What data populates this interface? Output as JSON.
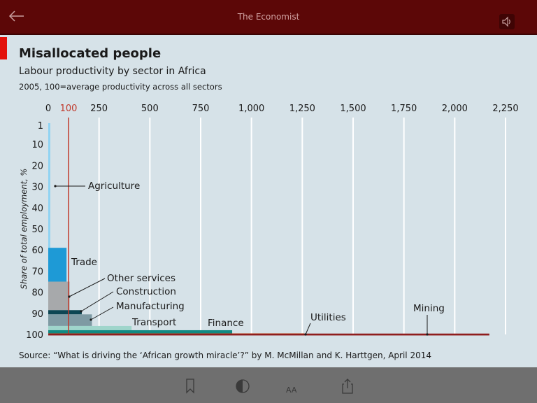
{
  "app": {
    "title": "The Economist"
  },
  "article": {
    "title": "Misallocated people",
    "subtitle": "Labour productivity by sector in Africa",
    "note": "2005, 100=average productivity across all sectors",
    "source": "Source: “What is driving the ‘African growth miracle’?” by M. McMillan and K. Harttgen, April 2014"
  },
  "toolbar": {
    "text_size_label": "AA"
  },
  "chart_data": {
    "type": "bar",
    "orientation": "horizontal-variable-width",
    "title": "Misallocated people",
    "subtitle": "Labour productivity by sector in Africa",
    "xlabel": "",
    "ylabel": "Share of total employment, %",
    "xlim": [
      0,
      2250
    ],
    "ylim": [
      0,
      100
    ],
    "x_ticks": [
      "0",
      "100",
      "250",
      "500",
      "750",
      "1,000",
      "1,250",
      "1,500",
      "1,750",
      "2,000",
      "2,250"
    ],
    "x_tick_values": [
      0,
      100,
      250,
      500,
      750,
      1000,
      1250,
      1500,
      1750,
      2000,
      2250
    ],
    "y_ticks": [
      "1",
      "10",
      "20",
      "30",
      "40",
      "50",
      "60",
      "70",
      "80",
      "90",
      "100"
    ],
    "y_tick_values": [
      1,
      10,
      20,
      30,
      40,
      50,
      60,
      70,
      80,
      90,
      100
    ],
    "reference_line": {
      "x": 100,
      "label": "100",
      "color": "#c0392b"
    },
    "grid": true,
    "sectors": [
      {
        "name": "Agriculture",
        "start": 0,
        "end": 59,
        "productivity": 10,
        "color": "#8fd3f2"
      },
      {
        "name": "Trade",
        "start": 59,
        "end": 75,
        "productivity": 90,
        "color": "#1e9ad6"
      },
      {
        "name": "Other services",
        "start": 75,
        "end": 88.5,
        "productivity": 105,
        "color": "#a7a9ab"
      },
      {
        "name": "Construction",
        "start": 88.5,
        "end": 90.5,
        "productivity": 165,
        "color": "#0d4653"
      },
      {
        "name": "Manufacturing",
        "start": 90.5,
        "end": 96,
        "productivity": 215,
        "color": "#7e9aa3"
      },
      {
        "name": "Transport",
        "start": 96,
        "end": 98,
        "productivity": 410,
        "color": "#9fd5cb"
      },
      {
        "name": "Finance",
        "start": 98,
        "end": 99.5,
        "productivity": 905,
        "color": "#128a83"
      },
      {
        "name": "Utilities",
        "start": 99.5,
        "end": 99.8,
        "productivity": 1260,
        "color": "#e56a1a"
      },
      {
        "name": "Mining",
        "start": 99.8,
        "end": 100,
        "productivity": 2170,
        "color": "#8f1d1d"
      }
    ]
  }
}
